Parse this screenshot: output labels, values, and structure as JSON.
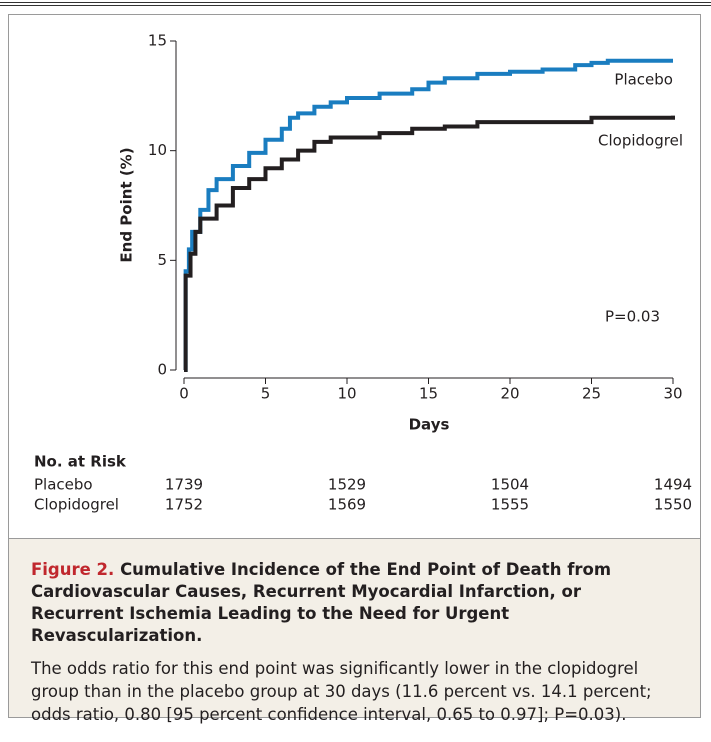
{
  "chart_data": {
    "type": "line",
    "step": true,
    "y_label": "End Point (%)",
    "x_label": "Days",
    "annotation": "P=0.03",
    "xlim": [
      0,
      30
    ],
    "xticks": [
      0,
      5,
      10,
      15,
      20,
      25,
      30
    ],
    "ylim": [
      0,
      15
    ],
    "yticks": [
      0,
      5,
      10,
      15
    ],
    "grid": false,
    "series": [
      {
        "name": "Placebo",
        "color": "#1a7dc0",
        "x": [
          0,
          0.1,
          0.3,
          0.5,
          1,
          1.5,
          2,
          3,
          4,
          5,
          6,
          6.5,
          7,
          8,
          9,
          10,
          12,
          14,
          15,
          16,
          18,
          20,
          22,
          24,
          25,
          26,
          30
        ],
        "values": [
          0,
          4.5,
          5.5,
          6.3,
          7.3,
          8.2,
          8.7,
          9.3,
          9.9,
          10.5,
          11,
          11.5,
          11.7,
          12,
          12.2,
          12.4,
          12.6,
          12.8,
          13.1,
          13.3,
          13.5,
          13.6,
          13.7,
          13.9,
          14,
          14.1,
          14.1
        ]
      },
      {
        "name": "Clopidogrel",
        "color": "#231f20",
        "x": [
          0,
          0.1,
          0.4,
          0.7,
          1,
          2,
          3,
          4,
          5,
          6,
          7,
          8,
          9,
          10,
          12,
          14,
          16,
          18,
          20,
          25,
          29,
          30
        ],
        "values": [
          0,
          4.3,
          5.3,
          6.3,
          6.9,
          7.5,
          8.3,
          8.7,
          9.2,
          9.6,
          10,
          10.4,
          10.6,
          10.6,
          10.8,
          11,
          11.1,
          11.3,
          11.3,
          11.5,
          11.5,
          11.6
        ]
      }
    ],
    "at_risk": {
      "title": "No. at Risk",
      "days": [
        0,
        10,
        20,
        30
      ],
      "rows": [
        {
          "name": "Placebo",
          "values": [
            1739,
            1529,
            1504,
            1494
          ]
        },
        {
          "name": "Clopidogrel",
          "values": [
            1752,
            1569,
            1555,
            1550
          ]
        }
      ]
    }
  },
  "caption": {
    "label": "Figure 2.",
    "title": "Cumulative Incidence of the End Point of Death from Cardiovascular Causes, Recurrent Myocardial Infarction, or Recurrent Ischemia Leading to the Need for Urgent Revascularization.",
    "text": "The odds ratio for this end point was significantly lower in the clopidogrel group than in the placebo group at 30 days (11.6 percent vs. 14.1 percent; odds ratio, 0.80 [95 percent confidence interval, 0.65 to 0.97]; P=0.03)."
  }
}
